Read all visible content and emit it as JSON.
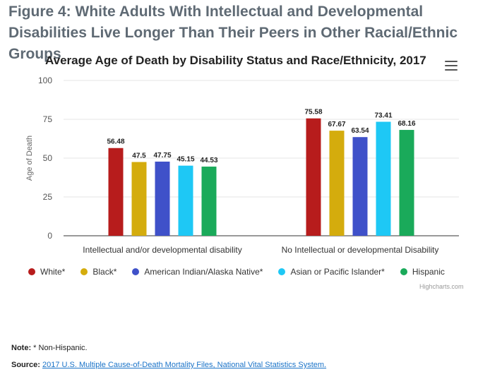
{
  "figure": {
    "title": "Figure 4: White Adults With Intellectual and Developmental Disabilities Live Longer Than Their Peers in Other Racial/Ethnic Groups"
  },
  "chart_data": {
    "type": "bar",
    "title": "Average Age of Death by Disability Status and Race/Ethnicity, 2017",
    "xlabel": "",
    "ylabel": "Age of Death",
    "ylim": [
      0,
      100
    ],
    "yticks": [
      0,
      25,
      50,
      75,
      100
    ],
    "grid": true,
    "legend_position": "bottom",
    "categories": [
      "Intellectual and/or developmental disability",
      "No Intellectual or developmental Disability"
    ],
    "series": [
      {
        "name": "White*",
        "color": "#b71c1c",
        "values": [
          56.48,
          75.58
        ]
      },
      {
        "name": "Black*",
        "color": "#d4ac0d",
        "values": [
          47.5,
          67.67
        ]
      },
      {
        "name": "American Indian/Alaska Native*",
        "color": "#3f51c9",
        "values": [
          47.75,
          63.54
        ]
      },
      {
        "name": "Asian or Pacific Islander*",
        "color": "#1ec8f5",
        "values": [
          45.15,
          73.41
        ]
      },
      {
        "name": "Hispanic",
        "color": "#1aaa5a",
        "values": [
          44.53,
          68.16
        ]
      }
    ],
    "credits": "Highcharts.com"
  },
  "menu_icon": "hamburger-menu-icon",
  "note": {
    "label": "Note:",
    "text": " * Non-Hispanic."
  },
  "source": {
    "label": "Source:",
    "link_text": "2017 U.S. Multiple Cause-of-Death Mortality Files, National Vital Statistics System."
  }
}
